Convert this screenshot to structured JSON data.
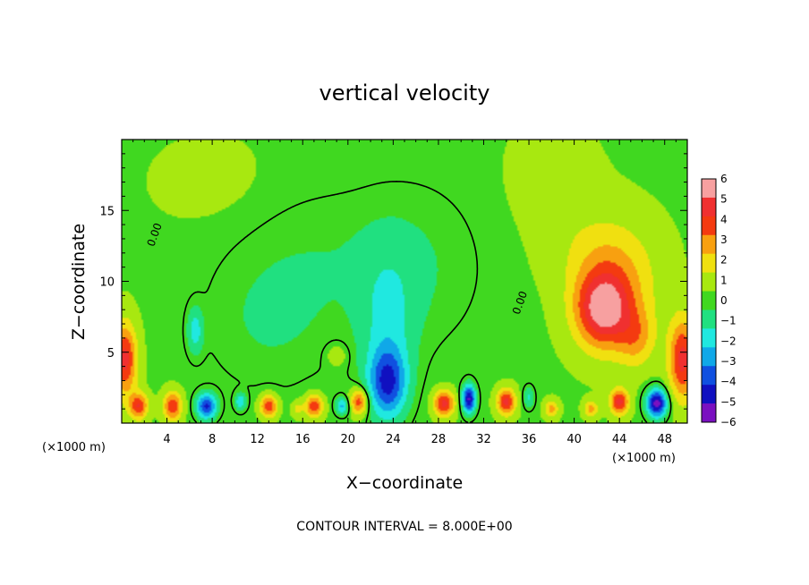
{
  "chart_data": {
    "type": "heatmap",
    "title": "vertical velocity",
    "xlabel": "X−coordinate",
    "ylabel": "Z−coordinate",
    "x_unit_left": "(×1000 m)",
    "x_unit_right": "(×1000 m)",
    "footer": "CONTOUR INTERVAL = 8.000E+00",
    "xlim": [
      0,
      50
    ],
    "ylim": [
      0,
      20
    ],
    "xticks": [
      4,
      8,
      12,
      16,
      20,
      24,
      28,
      32,
      36,
      40,
      44,
      48
    ],
    "xtick_labels": [
      "4",
      "8",
      "12",
      "16",
      "20",
      "24",
      "28",
      "32",
      "36",
      "40",
      "44",
      "48"
    ],
    "yticks": [
      5,
      10,
      15
    ],
    "ytick_labels": [
      "5",
      "10",
      "15"
    ],
    "colorbar": {
      "range": [
        -6,
        6
      ],
      "ticks": [
        6,
        5,
        4,
        3,
        2,
        1,
        0,
        -1,
        -2,
        -3,
        -4,
        -5,
        -6
      ],
      "tick_labels": [
        "6",
        "5",
        "4",
        "3",
        "2",
        "1",
        "0",
        "−1",
        "−2",
        "−3",
        "−4",
        "−5",
        "−6"
      ],
      "colors": [
        "#f7a0a0",
        "#f03030",
        "#f43a10",
        "#f8a010",
        "#f0e010",
        "#a8e810",
        "#40d820",
        "#20e080",
        "#20e8e0",
        "#10a8e8",
        "#1050e0",
        "#1010c0",
        "#7a10c0"
      ]
    },
    "contour_labels": [
      {
        "text": "0.00",
        "x": 3.2,
        "z": 13.2
      },
      {
        "text": "0.00",
        "x": 35.5,
        "z": 8.4
      }
    ],
    "features": [
      {
        "x": 42.5,
        "z": 8.0,
        "sx": 2.4,
        "sz": 2.6,
        "w": 5.0
      },
      {
        "x": 44.0,
        "z": 9.5,
        "sx": 3.5,
        "sz": 4.0,
        "w": 1.8
      },
      {
        "x": 42.0,
        "z": 12.0,
        "sx": 4.0,
        "sz": 3.0,
        "w": 1.0
      },
      {
        "x": 45.5,
        "z": 6.0,
        "sx": 1.6,
        "sz": 2.0,
        "w": 2.0
      },
      {
        "x": 49.6,
        "z": 4.5,
        "sx": 1.2,
        "sz": 2.8,
        "w": 4.5
      },
      {
        "x": 0.3,
        "z": 4.5,
        "sx": 1.0,
        "sz": 2.5,
        "w": 4.5
      },
      {
        "x": 1.5,
        "z": 1.2,
        "sx": 0.8,
        "sz": 0.9,
        "w": 4.0
      },
      {
        "x": 4.5,
        "z": 1.2,
        "sx": 0.8,
        "sz": 1.0,
        "w": 4.0
      },
      {
        "x": 7.5,
        "z": 1.2,
        "sx": 0.9,
        "sz": 0.9,
        "w": -5.0
      },
      {
        "x": 10.5,
        "z": 1.5,
        "sx": 0.5,
        "sz": 0.6,
        "w": -2.5
      },
      {
        "x": 13.0,
        "z": 1.2,
        "sx": 0.8,
        "sz": 0.8,
        "w": 4.0
      },
      {
        "x": 15.5,
        "z": 1.0,
        "sx": 0.5,
        "sz": 0.6,
        "w": 1.5
      },
      {
        "x": 17.0,
        "z": 1.2,
        "sx": 0.8,
        "sz": 0.8,
        "w": 4.0
      },
      {
        "x": 19.0,
        "z": 4.8,
        "sx": 0.9,
        "sz": 0.8,
        "w": 1.2
      },
      {
        "x": 19.5,
        "z": 1.2,
        "sx": 0.6,
        "sz": 0.6,
        "w": -3.0
      },
      {
        "x": 21.0,
        "z": 1.5,
        "sx": 0.8,
        "sz": 0.9,
        "w": 4.0
      },
      {
        "x": 23.5,
        "z": 2.8,
        "sx": 1.7,
        "sz": 2.5,
        "w": -4.6
      },
      {
        "x": 23.5,
        "z": 7.0,
        "sx": 2.5,
        "sz": 5.0,
        "w": -1.6
      },
      {
        "x": 28.5,
        "z": 1.4,
        "sx": 0.9,
        "sz": 0.9,
        "w": 4.5
      },
      {
        "x": 30.7,
        "z": 1.7,
        "sx": 0.6,
        "sz": 1.0,
        "w": -6.0
      },
      {
        "x": 34.0,
        "z": 1.5,
        "sx": 0.8,
        "sz": 0.9,
        "w": 4.5
      },
      {
        "x": 36.0,
        "z": 1.8,
        "sx": 0.5,
        "sz": 0.8,
        "w": -2.0
      },
      {
        "x": 38.0,
        "z": 1.0,
        "sx": 0.6,
        "sz": 0.6,
        "w": 2.5
      },
      {
        "x": 41.5,
        "z": 1.0,
        "sx": 0.6,
        "sz": 0.6,
        "w": 2.5
      },
      {
        "x": 44.0,
        "z": 1.5,
        "sx": 0.8,
        "sz": 0.9,
        "w": 4.5
      },
      {
        "x": 47.3,
        "z": 1.4,
        "sx": 0.9,
        "sz": 1.0,
        "w": -6.5
      },
      {
        "x": 6.5,
        "z": 6.5,
        "sx": 0.7,
        "sz": 1.6,
        "w": -2.2
      },
      {
        "x": 13.0,
        "z": 7.0,
        "sx": 6.0,
        "sz": 5.0,
        "w": -0.9
      },
      {
        "x": 17.0,
        "z": 12.0,
        "sx": 7.0,
        "sz": 5.0,
        "w": -0.6
      },
      {
        "x": 26.0,
        "z": 11.0,
        "sx": 6.0,
        "sz": 6.0,
        "w": -0.9
      },
      {
        "x": 8.0,
        "z": 17.0,
        "sx": 5.0,
        "sz": 3.0,
        "w": 0.4
      },
      {
        "x": 38.0,
        "z": 17.0,
        "sx": 4.0,
        "sz": 4.0,
        "w": 0.5
      }
    ]
  }
}
